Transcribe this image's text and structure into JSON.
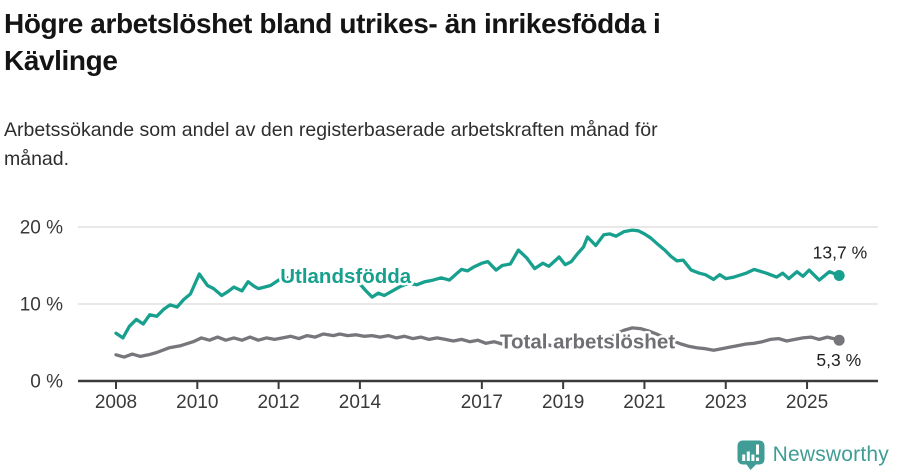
{
  "header": {
    "title": "Högre arbetslöshet bland utrikes- än inrikesfödda i Kävlinge",
    "title_lines": [
      "Högre arbetslöshet bland utrikes- än inrikesfödda i",
      "Kävlinge"
    ],
    "subtitle": "Arbetssökande som andel av den registerbaserade arbetskraften månad för månad.",
    "subtitle_lines": [
      "Arbetssökande som andel av den registerbaserade arbetskraften månad för",
      "månad."
    ]
  },
  "footer": {
    "brand": "Newsworthy",
    "brand_color": "#3f9d95",
    "logo_icon": "speech-bubble-bar-chart-icon"
  },
  "colors": {
    "background": "#ffffff",
    "grid": "#d9d9d9",
    "axis": "#3a3a3a",
    "axis_text": "#3a3a3a",
    "value_label_text": "#1f1f1f"
  },
  "chart_data": {
    "type": "line",
    "title": "Högre arbetslöshet bland utrikes- än inrikesfödda i Kävlinge",
    "subtitle": "Arbetssökande som andel av den registerbaserade arbetskraften månad för månad.",
    "xlabel": "",
    "ylabel": "",
    "unit": "%",
    "grid": "horizontal",
    "legend_position": "inline-labels",
    "x_range": [
      2007.9,
      2026.2
    ],
    "ylim": [
      0,
      21
    ],
    "x_ticks": [
      2008,
      2010,
      2012,
      2014,
      2017,
      2019,
      2021,
      2023,
      2025
    ],
    "y_ticks": [
      {
        "value": 0,
        "label": "0 %"
      },
      {
        "value": 10,
        "label": "10 %"
      },
      {
        "value": 20,
        "label": "20 %"
      }
    ],
    "series": [
      {
        "name": "Utlandsfödda",
        "color": "#18a08f",
        "label_color": "#18a08f",
        "label_at": [
          2013.65,
          12.7
        ],
        "end_label": "13,7 %",
        "end_value": 13.7,
        "points": [
          [
            2008.0,
            6.2
          ],
          [
            2008.17,
            5.6
          ],
          [
            2008.33,
            7.1
          ],
          [
            2008.5,
            8.0
          ],
          [
            2008.67,
            7.4
          ],
          [
            2008.83,
            8.6
          ],
          [
            2009.0,
            8.4
          ],
          [
            2009.17,
            9.3
          ],
          [
            2009.33,
            9.9
          ],
          [
            2009.5,
            9.6
          ],
          [
            2009.67,
            10.6
          ],
          [
            2009.83,
            11.3
          ],
          [
            2010.05,
            13.9
          ],
          [
            2010.25,
            12.4
          ],
          [
            2010.4,
            12.0
          ],
          [
            2010.6,
            11.1
          ],
          [
            2010.75,
            11.6
          ],
          [
            2010.9,
            12.2
          ],
          [
            2011.1,
            11.7
          ],
          [
            2011.25,
            12.9
          ],
          [
            2011.4,
            12.3
          ],
          [
            2011.5,
            12.0
          ],
          [
            2011.65,
            12.2
          ],
          [
            2011.8,
            12.4
          ],
          [
            2012.0,
            13.1
          ],
          [
            2012.2,
            13.4
          ],
          [
            2012.4,
            13.2
          ],
          [
            2012.6,
            13.6
          ],
          [
            2012.8,
            13.4
          ],
          [
            2013.0,
            13.5
          ],
          [
            2013.2,
            13.7
          ],
          [
            2013.4,
            13.9
          ],
          [
            2013.6,
            13.6
          ],
          [
            2013.8,
            13.3
          ],
          [
            2014.0,
            12.6
          ],
          [
            2014.15,
            11.7
          ],
          [
            2014.3,
            10.9
          ],
          [
            2014.45,
            11.4
          ],
          [
            2014.6,
            11.1
          ],
          [
            2014.8,
            11.7
          ],
          [
            2015.0,
            12.3
          ],
          [
            2015.2,
            12.7
          ],
          [
            2015.4,
            12.5
          ],
          [
            2015.6,
            12.9
          ],
          [
            2015.8,
            13.1
          ],
          [
            2016.0,
            13.4
          ],
          [
            2016.2,
            13.1
          ],
          [
            2016.35,
            13.8
          ],
          [
            2016.5,
            14.5
          ],
          [
            2016.65,
            14.3
          ],
          [
            2016.8,
            14.8
          ],
          [
            2017.0,
            15.3
          ],
          [
            2017.15,
            15.5
          ],
          [
            2017.35,
            14.4
          ],
          [
            2017.5,
            15.0
          ],
          [
            2017.7,
            15.2
          ],
          [
            2017.9,
            17.0
          ],
          [
            2018.1,
            16.0
          ],
          [
            2018.3,
            14.6
          ],
          [
            2018.5,
            15.3
          ],
          [
            2018.65,
            14.9
          ],
          [
            2018.9,
            16.1
          ],
          [
            2019.05,
            15.1
          ],
          [
            2019.2,
            15.5
          ],
          [
            2019.35,
            16.5
          ],
          [
            2019.5,
            17.4
          ],
          [
            2019.6,
            18.7
          ],
          [
            2019.8,
            17.6
          ],
          [
            2020.0,
            19.0
          ],
          [
            2020.15,
            19.1
          ],
          [
            2020.3,
            18.8
          ],
          [
            2020.5,
            19.4
          ],
          [
            2020.7,
            19.6
          ],
          [
            2020.85,
            19.5
          ],
          [
            2021.0,
            19.1
          ],
          [
            2021.15,
            18.6
          ],
          [
            2021.3,
            17.9
          ],
          [
            2021.5,
            17.0
          ],
          [
            2021.65,
            16.2
          ],
          [
            2021.8,
            15.6
          ],
          [
            2021.95,
            15.7
          ],
          [
            2022.15,
            14.4
          ],
          [
            2022.35,
            14.0
          ],
          [
            2022.5,
            13.8
          ],
          [
            2022.7,
            13.2
          ],
          [
            2022.85,
            13.8
          ],
          [
            2023.0,
            13.3
          ],
          [
            2023.2,
            13.5
          ],
          [
            2023.5,
            14.0
          ],
          [
            2023.7,
            14.5
          ],
          [
            2024.0,
            14.0
          ],
          [
            2024.25,
            13.5
          ],
          [
            2024.4,
            14.0
          ],
          [
            2024.55,
            13.3
          ],
          [
            2024.75,
            14.2
          ],
          [
            2024.9,
            13.6
          ],
          [
            2025.05,
            14.4
          ],
          [
            2025.3,
            13.1
          ],
          [
            2025.55,
            14.2
          ],
          [
            2025.79,
            13.7
          ]
        ]
      },
      {
        "name": "Total arbetslöshet",
        "color": "#77767b",
        "label_color": "#6f6e73",
        "label_at": [
          2019.6,
          4.2
        ],
        "end_label": "5,3 %",
        "end_value": 5.3,
        "points": [
          [
            2008.0,
            3.4
          ],
          [
            2008.2,
            3.1
          ],
          [
            2008.4,
            3.5
          ],
          [
            2008.6,
            3.2
          ],
          [
            2008.8,
            3.4
          ],
          [
            2009.0,
            3.7
          ],
          [
            2009.3,
            4.3
          ],
          [
            2009.6,
            4.6
          ],
          [
            2009.9,
            5.1
          ],
          [
            2010.1,
            5.6
          ],
          [
            2010.3,
            5.3
          ],
          [
            2010.5,
            5.7
          ],
          [
            2010.7,
            5.3
          ],
          [
            2010.9,
            5.6
          ],
          [
            2011.1,
            5.3
          ],
          [
            2011.3,
            5.7
          ],
          [
            2011.5,
            5.3
          ],
          [
            2011.7,
            5.6
          ],
          [
            2011.9,
            5.4
          ],
          [
            2012.1,
            5.6
          ],
          [
            2012.3,
            5.8
          ],
          [
            2012.5,
            5.5
          ],
          [
            2012.7,
            5.9
          ],
          [
            2012.9,
            5.7
          ],
          [
            2013.1,
            6.1
          ],
          [
            2013.35,
            5.9
          ],
          [
            2013.5,
            6.1
          ],
          [
            2013.7,
            5.9
          ],
          [
            2013.9,
            6.0
          ],
          [
            2014.1,
            5.8
          ],
          [
            2014.3,
            5.9
          ],
          [
            2014.5,
            5.7
          ],
          [
            2014.7,
            5.9
          ],
          [
            2014.9,
            5.6
          ],
          [
            2015.1,
            5.8
          ],
          [
            2015.3,
            5.5
          ],
          [
            2015.5,
            5.7
          ],
          [
            2015.7,
            5.4
          ],
          [
            2015.9,
            5.6
          ],
          [
            2016.1,
            5.4
          ],
          [
            2016.3,
            5.2
          ],
          [
            2016.5,
            5.4
          ],
          [
            2016.7,
            5.1
          ],
          [
            2016.9,
            5.3
          ],
          [
            2017.1,
            4.9
          ],
          [
            2017.3,
            5.1
          ],
          [
            2017.5,
            4.8
          ],
          [
            2017.7,
            5.0
          ],
          [
            2017.9,
            4.7
          ],
          [
            2018.1,
            4.9
          ],
          [
            2018.3,
            4.7
          ],
          [
            2018.5,
            4.9
          ],
          [
            2018.7,
            4.6
          ],
          [
            2018.9,
            4.8
          ],
          [
            2019.1,
            4.6
          ],
          [
            2019.3,
            4.8
          ],
          [
            2019.5,
            4.6
          ],
          [
            2019.7,
            4.7
          ],
          [
            2019.9,
            4.8
          ],
          [
            2020.1,
            5.3
          ],
          [
            2020.3,
            6.1
          ],
          [
            2020.5,
            6.6
          ],
          [
            2020.7,
            6.9
          ],
          [
            2020.9,
            6.8
          ],
          [
            2021.1,
            6.5
          ],
          [
            2021.3,
            6.1
          ],
          [
            2021.5,
            5.6
          ],
          [
            2021.7,
            5.2
          ],
          [
            2021.9,
            4.8
          ],
          [
            2022.1,
            4.5
          ],
          [
            2022.3,
            4.3
          ],
          [
            2022.5,
            4.2
          ],
          [
            2022.7,
            4.0
          ],
          [
            2022.9,
            4.2
          ],
          [
            2023.1,
            4.4
          ],
          [
            2023.3,
            4.6
          ],
          [
            2023.5,
            4.8
          ],
          [
            2023.7,
            4.9
          ],
          [
            2023.9,
            5.1
          ],
          [
            2024.1,
            5.4
          ],
          [
            2024.3,
            5.5
          ],
          [
            2024.5,
            5.2
          ],
          [
            2024.7,
            5.4
          ],
          [
            2024.9,
            5.6
          ],
          [
            2025.1,
            5.7
          ],
          [
            2025.3,
            5.4
          ],
          [
            2025.5,
            5.7
          ],
          [
            2025.65,
            5.5
          ],
          [
            2025.79,
            5.3
          ]
        ]
      }
    ]
  }
}
